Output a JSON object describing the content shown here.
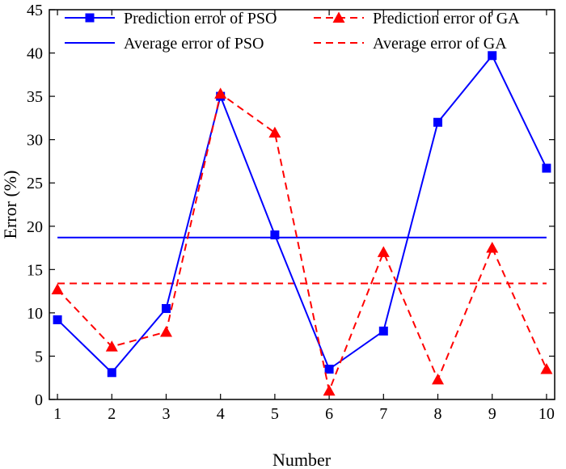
{
  "chart_data": {
    "type": "line",
    "title": "",
    "xlabel": "Number",
    "ylabel": "Error (%)",
    "xlim": [
      0.85,
      10.15
    ],
    "ylim": [
      0,
      45
    ],
    "xticks": [
      1,
      2,
      3,
      4,
      5,
      6,
      7,
      8,
      9,
      10
    ],
    "yticks": [
      0,
      5,
      10,
      15,
      20,
      25,
      30,
      35,
      40,
      45
    ],
    "x": [
      1,
      2,
      3,
      4,
      5,
      6,
      7,
      8,
      9,
      10
    ],
    "series": [
      {
        "name": "Prediction error of PSO",
        "values": [
          9.2,
          3.1,
          10.5,
          35.0,
          19.0,
          3.5,
          7.9,
          32.0,
          39.7,
          26.7
        ],
        "color": "#0000ff",
        "line": "solid",
        "marker": "square"
      },
      {
        "name": "Prediction error of GA",
        "values": [
          12.7,
          6.1,
          7.8,
          35.3,
          30.8,
          1.0,
          17.0,
          2.3,
          17.5,
          3.5
        ],
        "color": "#ff0000",
        "line": "dashed",
        "marker": "triangle"
      }
    ],
    "reference_lines": [
      {
        "name": "Average error of  PSO",
        "value": 18.7,
        "color": "#0000ff",
        "line": "solid"
      },
      {
        "name": "Average error of GA",
        "value": 13.4,
        "color": "#ff0000",
        "line": "dashed"
      }
    ],
    "legend": "top",
    "grid": false
  }
}
